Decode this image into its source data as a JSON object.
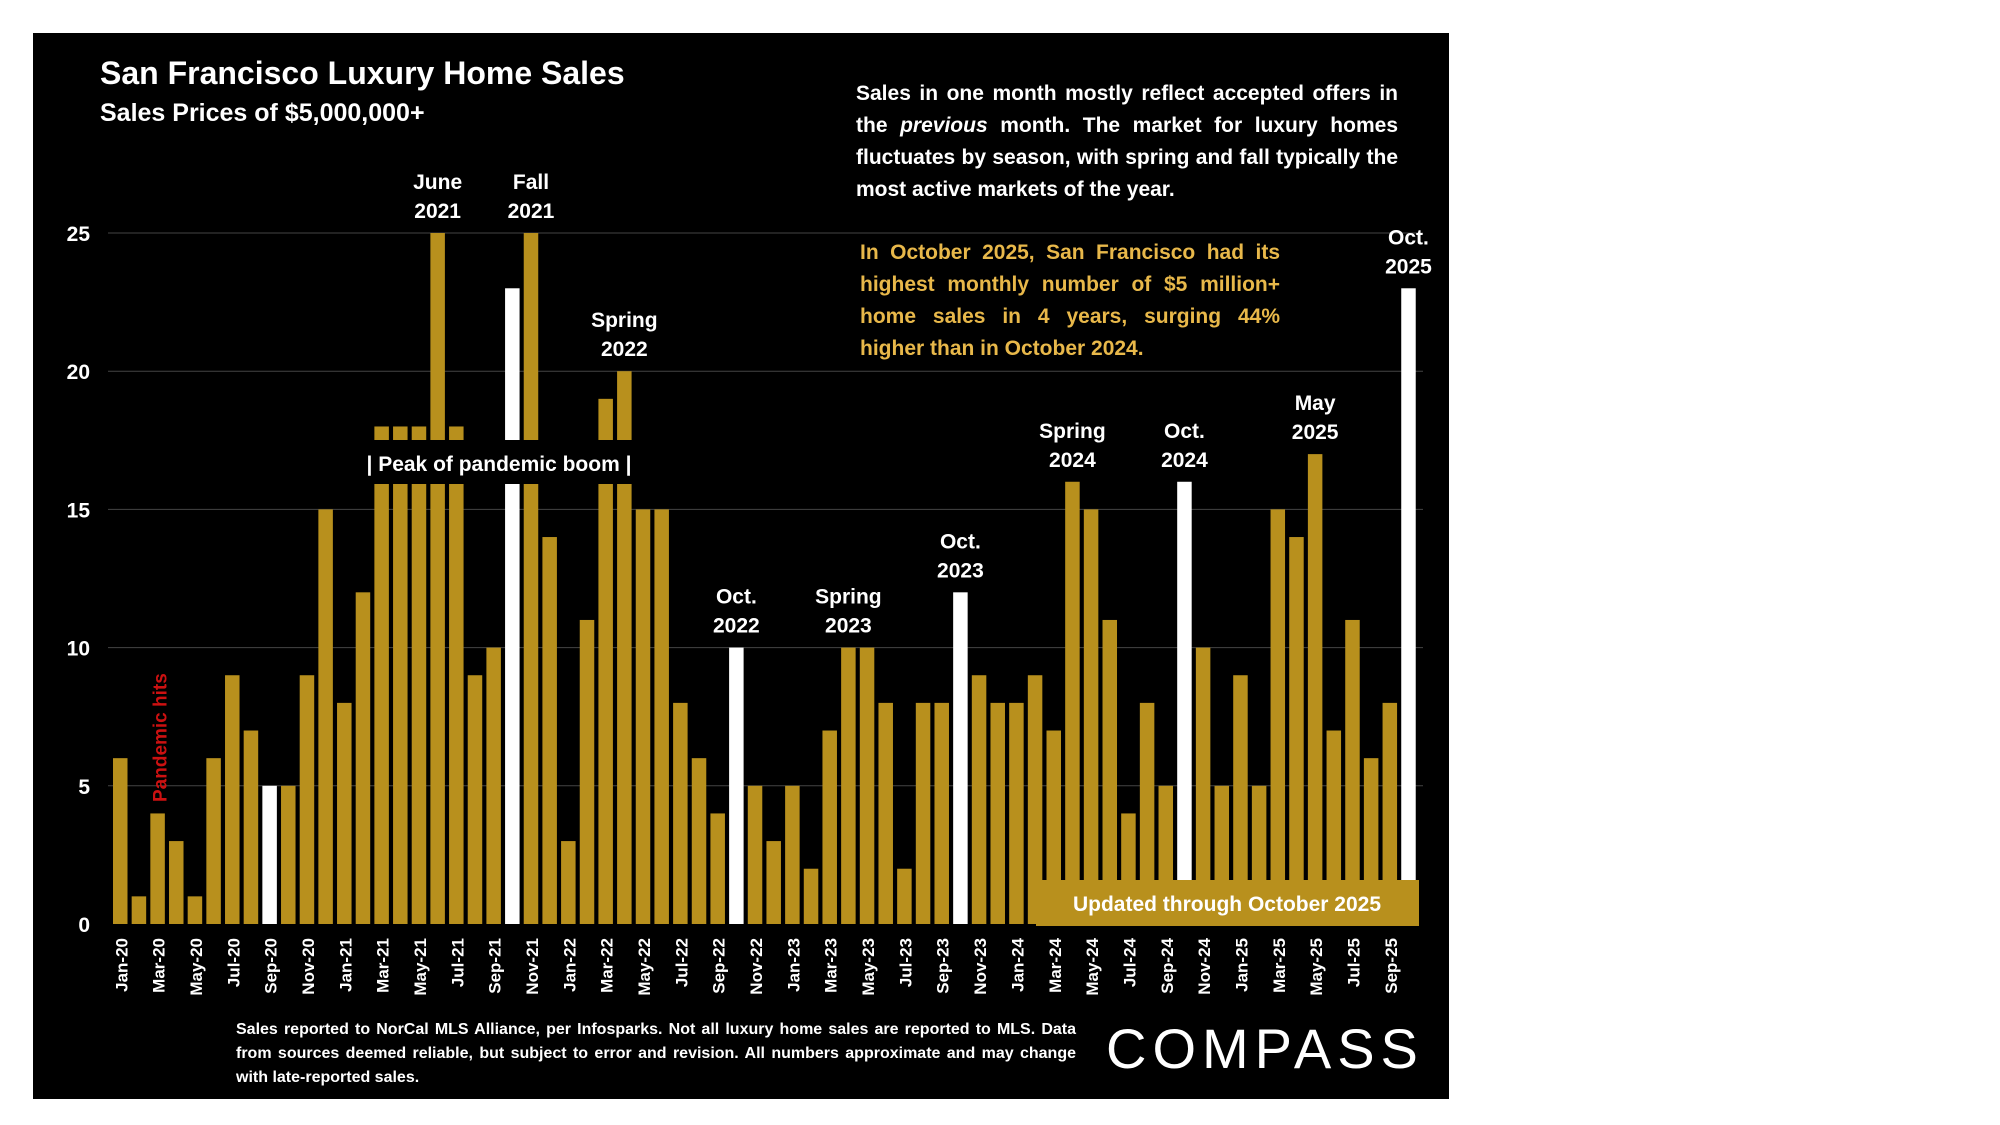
{
  "colors": {
    "background": "#000000",
    "bar": "#b8901d",
    "highlight": "#ffffff",
    "note": "#e8b84a",
    "pandemic": "#cc1111",
    "grid": "#444444"
  },
  "title": "San Francisco Luxury Home Sales",
  "subtitle": "Sales Prices of $5,000,000+",
  "note_main": "Sales in one month mostly reflect accepted offers in the previous month. The market for luxury homes fluctuates by season, with spring and fall typically the most active markets of the year.",
  "note_highlight": "In October 2025, San Francisco had its highest monthly number of $5 million+ home sales in 4 years, surging 44% higher than in October 2024.",
  "footnote": "Sales reported to NorCal MLS Alliance, per Infosparks. Not all luxury home sales are reported to MLS. Data from sources deemed reliable, but subject to error and revision. All numbers approximate and may change with late-reported sales.",
  "logo": "COMPASS",
  "chart_data": {
    "type": "bar",
    "ylim": [
      0,
      25
    ],
    "yticks": [
      0,
      5,
      10,
      15,
      20,
      25
    ],
    "grid": true,
    "x": [
      "Jan-20",
      "Feb-20",
      "Mar-20",
      "Apr-20",
      "May-20",
      "Jun-20",
      "Jul-20",
      "Aug-20",
      "Sep-20",
      "Oct-20",
      "Nov-20",
      "Dec-20",
      "Jan-21",
      "Feb-21",
      "Mar-21",
      "Apr-21",
      "May-21",
      "Jun-21",
      "Jul-21",
      "Aug-21",
      "Sep-21",
      "Oct-21",
      "Nov-21",
      "Dec-21",
      "Jan-22",
      "Feb-22",
      "Mar-22",
      "Apr-22",
      "May-22",
      "Jun-22",
      "Jul-22",
      "Aug-22",
      "Sep-22",
      "Oct-22",
      "Nov-22",
      "Dec-22",
      "Jan-23",
      "Feb-23",
      "Mar-23",
      "Apr-23",
      "May-23",
      "Jun-23",
      "Jul-23",
      "Aug-23",
      "Sep-23",
      "Oct-23",
      "Nov-23",
      "Dec-23",
      "Jan-24",
      "Feb-24",
      "Mar-24",
      "Apr-24",
      "May-24",
      "Jun-24",
      "Jul-24",
      "Aug-24",
      "Sep-24",
      "Oct-24",
      "Nov-24",
      "Dec-24",
      "Jan-25",
      "Feb-25",
      "Mar-25",
      "Apr-25",
      "May-25",
      "Jun-25",
      "Jul-25",
      "Aug-25",
      "Sep-25",
      "Oct-25"
    ],
    "tick_labels": [
      "Jan-20",
      "Mar-20",
      "May-20",
      "Jul-20",
      "Sep-20",
      "Nov-20",
      "Jan-21",
      "Mar-21",
      "May-21",
      "Jul-21",
      "Sep-21",
      "Nov-21",
      "Jan-22",
      "Mar-22",
      "May-22",
      "Jul-22",
      "Sep-22",
      "Nov-22",
      "Jan-23",
      "Mar-23",
      "May-23",
      "Jul-23",
      "Sep-23",
      "Nov-23",
      "Jan-24",
      "Mar-24",
      "May-24",
      "Jul-24",
      "Sep-24",
      "Nov-24",
      "Jan-25",
      "Mar-25",
      "May-25",
      "Jul-25",
      "Sep-25"
    ],
    "values": [
      6,
      1,
      4,
      3,
      1,
      6,
      9,
      7,
      5,
      5,
      9,
      15,
      8,
      12,
      18,
      18,
      18,
      25,
      18,
      9,
      10,
      23,
      25,
      14,
      3,
      11,
      19,
      20,
      15,
      15,
      8,
      6,
      4,
      10,
      5,
      3,
      5,
      2,
      7,
      10,
      10,
      8,
      2,
      8,
      8,
      12,
      9,
      8,
      8,
      9,
      7,
      16,
      15,
      11,
      4,
      8,
      5,
      16,
      10,
      5,
      9,
      5,
      15,
      14,
      17,
      7,
      11,
      6,
      8,
      23
    ],
    "highlight": [
      "Sep-20",
      "Oct-21",
      "Oct-22",
      "Oct-23",
      "Oct-24",
      "Oct-25"
    ],
    "annotations": [
      {
        "text": [
          "June",
          "2021"
        ],
        "x": "Jun-21"
      },
      {
        "text": [
          "Fall",
          "2021"
        ],
        "x": "Nov-21"
      },
      {
        "text": [
          "Spring",
          "2022"
        ],
        "x": "Apr-22"
      },
      {
        "text": [
          "Oct.",
          "2022"
        ],
        "x": "Oct-22"
      },
      {
        "text": [
          "Spring",
          "2023"
        ],
        "x": "Apr-23"
      },
      {
        "text": [
          "Oct.",
          "2023"
        ],
        "x": "Oct-23"
      },
      {
        "text": [
          "Spring",
          "2024"
        ],
        "x": "Apr-24"
      },
      {
        "text": [
          "Oct.",
          "2024"
        ],
        "x": "Oct-24"
      },
      {
        "text": [
          "May",
          "2025"
        ],
        "x": "May-25"
      },
      {
        "text": [
          "Oct.",
          "2025"
        ],
        "x": "Oct-25"
      }
    ],
    "band_label": "Peak of pandemic boom",
    "band_range": [
      "Mar-21",
      "Apr-22"
    ],
    "pandemic_label": "Pandemic hits",
    "updated_label": "Updated through October 2025"
  }
}
